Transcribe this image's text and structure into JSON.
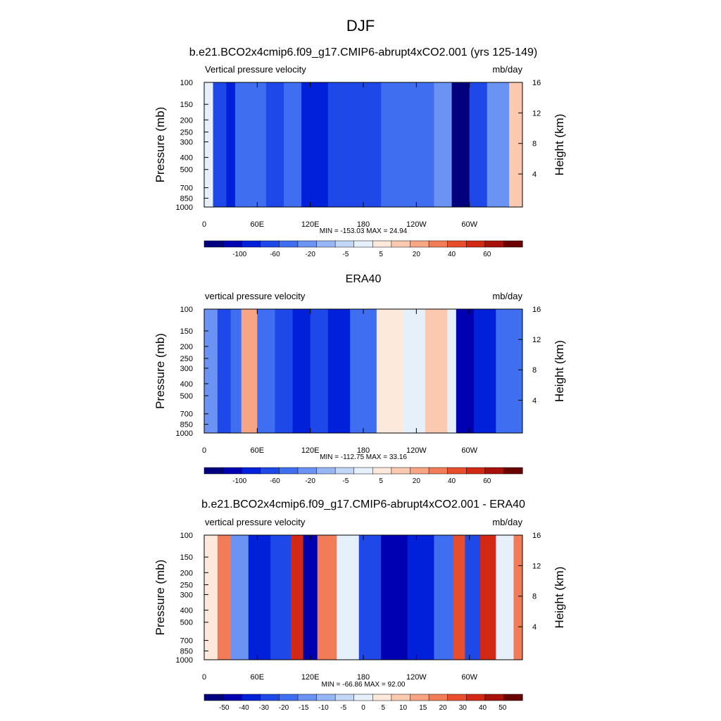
{
  "figure": {
    "title": "DJF"
  },
  "colors": {
    "abs_levels": [
      "#00007f",
      "#0000b3",
      "#0020d9",
      "#1f48e8",
      "#3f6ff0",
      "#6b93f3",
      "#97b6f5",
      "#c2d6f8",
      "#e6f0fb",
      "#fde8dc",
      "#fbc9b0",
      "#f7a583",
      "#f27c57",
      "#e94e2c",
      "#d22814",
      "#a8100a",
      "#6b0000"
    ],
    "diff_levels": [
      "#00007f",
      "#0000b3",
      "#0020d9",
      "#1f48e8",
      "#3f6ff0",
      "#6b93f3",
      "#97b6f5",
      "#c2d6f8",
      "#e6f0fb",
      "#fde8dc",
      "#fbc9b0",
      "#f7a583",
      "#f27c57",
      "#e94e2c",
      "#d22814",
      "#a8100a",
      "#6b0000"
    ],
    "land_mask": "#000000"
  },
  "chart_data": [
    {
      "type": "heatmap",
      "title": "b.e21.BCO2x4cmip6.f09_g17.CMIP6-abrupt4xCO2.001 (yrs 125-149)",
      "left_label": "Vertical pressure velocity",
      "right_label": "mb/day",
      "xlabel": "",
      "ylabel": "Pressure (mb)",
      "y2label": "Height (km)",
      "xticks": [
        "0",
        "60E",
        "120E",
        "180",
        "120W",
        "60W"
      ],
      "xtick_values": [
        0,
        60,
        120,
        180,
        240,
        300
      ],
      "xlim": [
        0,
        360
      ],
      "yticks": [
        "100",
        "150",
        "200",
        "250",
        "300",
        "400",
        "500",
        "700",
        "850",
        "1000"
      ],
      "ytick_values": [
        100,
        150,
        200,
        250,
        300,
        400,
        500,
        700,
        850,
        1000
      ],
      "ylim": [
        1000,
        100
      ],
      "y2ticks": [
        "4",
        "8",
        "12",
        "16"
      ],
      "y2tick_values": [
        4,
        8,
        12,
        16
      ],
      "stats": "MIN = -153.03  MAX =  24.94",
      "colorbar_labels": [
        "-100",
        "-60",
        "-20",
        "-5",
        "5",
        "20",
        "40",
        "60"
      ],
      "field": [
        {
          "lon": 0,
          "value": 5
        },
        {
          "lon": 10,
          "value": -40
        },
        {
          "lon": 25,
          "value": -60
        },
        {
          "lon": 35,
          "value": -20
        },
        {
          "lon": 50,
          "value": -20
        },
        {
          "lon": 70,
          "value": -40
        },
        {
          "lon": 90,
          "value": -30
        },
        {
          "lon": 110,
          "value": -60
        },
        {
          "lon": 140,
          "value": -50
        },
        {
          "lon": 170,
          "value": -40
        },
        {
          "lon": 200,
          "value": -30
        },
        {
          "lon": 230,
          "value": -20
        },
        {
          "lon": 260,
          "value": -15
        },
        {
          "lon": 280,
          "value": -100
        },
        {
          "lon": 300,
          "value": -40
        },
        {
          "lon": 320,
          "value": -10
        },
        {
          "lon": 345,
          "value": 20
        },
        {
          "lon": 360,
          "value": 5
        }
      ]
    },
    {
      "type": "heatmap",
      "title": "ERA40",
      "left_label": "vertical pressure velocity",
      "right_label": "mb/day",
      "xlabel": "",
      "ylabel": "Pressure (mb)",
      "y2label": "Height (km)",
      "xticks": [
        "0",
        "60E",
        "120E",
        "180",
        "120W",
        "60W"
      ],
      "xtick_values": [
        0,
        60,
        120,
        180,
        240,
        300
      ],
      "xlim": [
        0,
        360
      ],
      "yticks": [
        "100",
        "150",
        "200",
        "250",
        "300",
        "400",
        "500",
        "700",
        "850",
        "1000"
      ],
      "ytick_values": [
        100,
        150,
        200,
        250,
        300,
        400,
        500,
        700,
        850,
        1000
      ],
      "ylim": [
        1000,
        100
      ],
      "y2ticks": [
        "4",
        "8",
        "12",
        "16"
      ],
      "y2tick_values": [
        4,
        8,
        12,
        16
      ],
      "stats": "MIN = -112.75  MAX =  33.16",
      "colorbar_labels": [
        "-100",
        "-60",
        "-20",
        "-5",
        "5",
        "20",
        "40",
        "60"
      ],
      "field": [
        {
          "lon": 0,
          "value": -10
        },
        {
          "lon": 15,
          "value": -40
        },
        {
          "lon": 30,
          "value": -30
        },
        {
          "lon": 42,
          "value": 30
        },
        {
          "lon": 60,
          "value": -20
        },
        {
          "lon": 80,
          "value": -40
        },
        {
          "lon": 100,
          "value": -60
        },
        {
          "lon": 120,
          "value": -40
        },
        {
          "lon": 140,
          "value": -60
        },
        {
          "lon": 165,
          "value": -30
        },
        {
          "lon": 195,
          "value": 10
        },
        {
          "lon": 225,
          "value": 5
        },
        {
          "lon": 250,
          "value": 20
        },
        {
          "lon": 275,
          "value": 5
        },
        {
          "lon": 285,
          "value": -80
        },
        {
          "lon": 305,
          "value": -60
        },
        {
          "lon": 330,
          "value": -20
        },
        {
          "lon": 360,
          "value": -10
        }
      ]
    },
    {
      "type": "heatmap",
      "title": "b.e21.BCO2x4cmip6.f09_g17.CMIP6-abrupt4xCO2.001 - ERA40",
      "left_label": "vertical pressure velocity",
      "right_label": "mb/day",
      "xlabel": "",
      "ylabel": "Pressure (mb)",
      "y2label": "Height (km)",
      "xticks": [
        "0",
        "60E",
        "120E",
        "180",
        "120W",
        "60W"
      ],
      "xtick_values": [
        0,
        60,
        120,
        180,
        240,
        300
      ],
      "xlim": [
        0,
        360
      ],
      "yticks": [
        "100",
        "150",
        "200",
        "250",
        "300",
        "400",
        "500",
        "700",
        "850",
        "1000"
      ],
      "ytick_values": [
        100,
        150,
        200,
        250,
        300,
        400,
        500,
        700,
        850,
        1000
      ],
      "ylim": [
        1000,
        100
      ],
      "y2ticks": [
        "4",
        "8",
        "12",
        "16"
      ],
      "y2tick_values": [
        4,
        8,
        12,
        16
      ],
      "stats": "MIN = -66.86  MAX =  92.00",
      "colorbar_labels": [
        "-50",
        "-40",
        "-30",
        "-20",
        "-15",
        "-10",
        "-5",
        "0",
        "5",
        "10",
        "15",
        "20",
        "30",
        "40",
        "50"
      ],
      "field": [
        {
          "lon": 0,
          "value": 10
        },
        {
          "lon": 15,
          "value": 30
        },
        {
          "lon": 30,
          "value": -10
        },
        {
          "lon": 50,
          "value": -30
        },
        {
          "lon": 75,
          "value": -20
        },
        {
          "lon": 98,
          "value": 50
        },
        {
          "lon": 112,
          "value": -40
        },
        {
          "lon": 128,
          "value": 30
        },
        {
          "lon": 150,
          "value": 5
        },
        {
          "lon": 175,
          "value": -20
        },
        {
          "lon": 200,
          "value": -40
        },
        {
          "lon": 230,
          "value": -30
        },
        {
          "lon": 260,
          "value": -15
        },
        {
          "lon": 282,
          "value": 40
        },
        {
          "lon": 295,
          "value": -20
        },
        {
          "lon": 312,
          "value": 50
        },
        {
          "lon": 330,
          "value": 5
        },
        {
          "lon": 350,
          "value": 30
        },
        {
          "lon": 360,
          "value": 10
        }
      ]
    }
  ]
}
